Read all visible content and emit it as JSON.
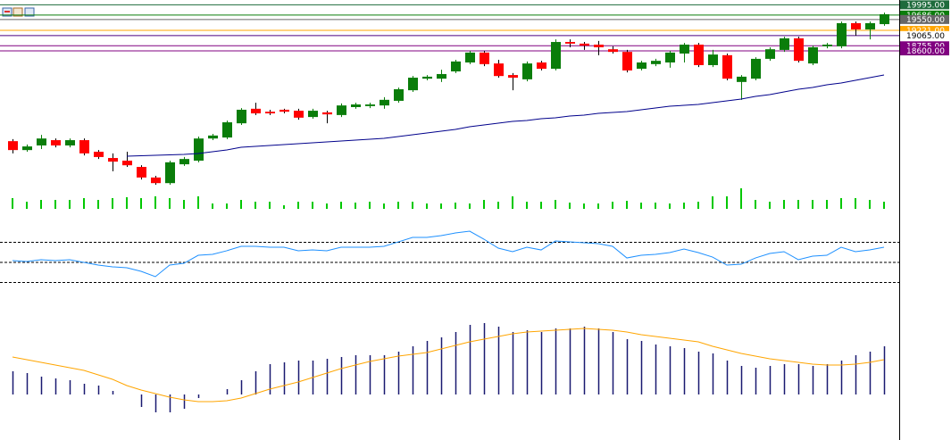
{
  "chart_data": {
    "type": "candlestick",
    "ylim": [
      14470,
      20140
    ],
    "open": [
      15870,
      15600,
      15740,
      15900,
      15740,
      15900,
      15550,
      15360,
      15280,
      15090,
      14770,
      14600,
      15170,
      15280,
      15950,
      15980,
      16410,
      16850,
      16760,
      16820,
      16790,
      16600,
      16740,
      16660,
      16900,
      16930,
      16950,
      17090,
      17410,
      17760,
      17760,
      17980,
      18250,
      18550,
      18220,
      17870,
      17740,
      18250,
      18060,
      18870,
      18820,
      18790,
      18650,
      18570,
      18060,
      18200,
      18250,
      18520,
      18790,
      18170,
      18470,
      17660,
      17760,
      18360,
      18630,
      18980,
      18220,
      18740,
      18740,
      19440,
      19250,
      19410
    ],
    "high": [
      15930,
      15770,
      16060,
      15950,
      15950,
      15950,
      15600,
      15500,
      15550,
      15140,
      14820,
      15280,
      15390,
      16010,
      16090,
      16490,
      16870,
      17030,
      16820,
      16850,
      16850,
      16850,
      16790,
      17010,
      17030,
      17030,
      17200,
      17490,
      17840,
      17870,
      18030,
      18330,
      18600,
      18600,
      18330,
      17930,
      18280,
      18300,
      18950,
      18950,
      18870,
      18900,
      18740,
      18630,
      18300,
      18360,
      18600,
      18840,
      18840,
      18630,
      18520,
      17870,
      18410,
      18710,
      19030,
      19030,
      18760,
      18840,
      19490,
      19490,
      19490,
      19760
    ],
    "low": [
      15500,
      15550,
      15630,
      15680,
      15680,
      15440,
      15330,
      14960,
      15090,
      14710,
      14550,
      14550,
      15120,
      15230,
      15900,
      15930,
      16360,
      16660,
      16660,
      16710,
      16520,
      16550,
      16410,
      16600,
      16850,
      16870,
      16850,
      17030,
      17360,
      17710,
      17660,
      17930,
      18200,
      18140,
      17790,
      17410,
      17680,
      18010,
      18010,
      18710,
      18630,
      18470,
      18520,
      17950,
      18010,
      18140,
      18090,
      18250,
      18110,
      18110,
      17710,
      17120,
      17710,
      18300,
      18570,
      18250,
      18170,
      18680,
      18680,
      19060,
      18950,
      19360
    ],
    "close": [
      15600,
      15710,
      15950,
      15740,
      15900,
      15500,
      15390,
      15250,
      15140,
      14770,
      14600,
      15230,
      15330,
      15950,
      16040,
      16440,
      16820,
      16710,
      16710,
      16760,
      16580,
      16790,
      16680,
      16950,
      16980,
      16980,
      17120,
      17440,
      17790,
      17820,
      17900,
      18280,
      18550,
      18200,
      17840,
      17790,
      18220,
      18060,
      18870,
      18820,
      18760,
      18710,
      18570,
      18010,
      18250,
      18300,
      18550,
      18790,
      18170,
      18490,
      17760,
      17820,
      18360,
      18650,
      18980,
      18300,
      18710,
      18790,
      19440,
      19250,
      19440,
      19710
    ],
    "up_color": "#0a7d0a",
    "down_color": "#ff0000",
    "ma": [
      null,
      null,
      null,
      null,
      null,
      null,
      null,
      null,
      15414,
      15428,
      15441,
      15455,
      15468,
      15495,
      15549,
      15603,
      15684,
      15711,
      15738,
      15765,
      15792,
      15819,
      15846,
      15873,
      15900,
      15927,
      15954,
      16008,
      16062,
      16116,
      16170,
      16224,
      16305,
      16359,
      16413,
      16467,
      16494,
      16548,
      16575,
      16629,
      16656,
      16710,
      16737,
      16764,
      16818,
      16872,
      16926,
      16953,
      16980,
      17034,
      17088,
      17142,
      17223,
      17277,
      17358,
      17439,
      17493,
      17574,
      17628,
      17709,
      17790,
      17871
    ],
    "ma_color": "#00008b",
    "yticks": [
      {
        "value": 19995,
        "label": "19995.00"
      },
      {
        "value": 19686,
        "label": "19686.00"
      },
      {
        "value": 19550,
        "label": "19550.00"
      },
      {
        "value": 19221,
        "label": "19221.00"
      },
      {
        "value": 19065,
        "label": "19065.00"
      },
      {
        "value": 18755,
        "label": "18755.00"
      },
      {
        "value": 18600,
        "label": "18600.00"
      }
    ],
    "ytick_colors": [
      "#1e6b3c",
      "#0a7d0a",
      "#666666",
      "#ffa500",
      "#ffffff",
      "#800080",
      "#800080"
    ],
    "volume": [
      12,
      8,
      10,
      10,
      10,
      12,
      10,
      12,
      13,
      12,
      14,
      12,
      10,
      14,
      6,
      6,
      10,
      8,
      8,
      4,
      8,
      8,
      6,
      8,
      7,
      8,
      6,
      8,
      8,
      6,
      6,
      7,
      6,
      10,
      8,
      14,
      8,
      8,
      10,
      7,
      6,
      6,
      8,
      9,
      7,
      7,
      6,
      7,
      8,
      14,
      14,
      23,
      10,
      8,
      10,
      10,
      10,
      10,
      12,
      12,
      10,
      8
    ],
    "volume_ylim": [
      0,
      30
    ],
    "volume_color": "#00c800",
    "rsi": [
      51.8,
      50.9,
      52.7,
      51.8,
      52.7,
      50,
      47.3,
      45.6,
      44.7,
      41.1,
      35.8,
      47.3,
      49.1,
      57.1,
      58,
      61.6,
      66,
      66,
      65.1,
      65.1,
      61.6,
      62.4,
      61.6,
      65.1,
      65.1,
      65.1,
      66,
      70.4,
      74.9,
      74.9,
      76.7,
      79.3,
      81.1,
      73.1,
      64.2,
      60.7,
      65.1,
      62.4,
      71.3,
      70.4,
      69.6,
      68.7,
      66,
      54.4,
      57.1,
      58,
      59.8,
      63.3,
      59.8,
      55.3,
      47.3,
      48.2,
      54.4,
      58.9,
      60.7,
      52.7,
      56.2,
      57.1,
      65.1,
      60.7,
      62.4,
      65.1
    ],
    "rsi_ylim": [
      0,
      100
    ],
    "rsi_levels": [
      70,
      50,
      30
    ],
    "rsi_color": "#1e90ff",
    "macd": [
      26,
      24,
      20,
      18,
      16,
      12,
      10,
      4,
      0,
      -14,
      -20,
      -20,
      -16,
      -4,
      0,
      6,
      16,
      26,
      34,
      36,
      38,
      38,
      40,
      42,
      44,
      44,
      44,
      48,
      54,
      60,
      64,
      70,
      78,
      80,
      76,
      70,
      72,
      70,
      74,
      74,
      76,
      74,
      70,
      62,
      60,
      56,
      54,
      52,
      48,
      46,
      38,
      32,
      30,
      32,
      34,
      34,
      32,
      34,
      38,
      44,
      48,
      54
    ],
    "signal": [
      42,
      39,
      36,
      33,
      30,
      27,
      22,
      17,
      10,
      5,
      1,
      -3,
      -6,
      -8,
      -8,
      -7,
      -4,
      1,
      6,
      10,
      14,
      19,
      24,
      29,
      33,
      37,
      40,
      43,
      45,
      47,
      51,
      55,
      59,
      62,
      65,
      68,
      70,
      71,
      72,
      73,
      74,
      73,
      72,
      70,
      67,
      65,
      63,
      61,
      59,
      54,
      50,
      46,
      43,
      40,
      38,
      36,
      34,
      33,
      33,
      34,
      36,
      39
    ],
    "macd_ylim": [
      -50,
      100
    ],
    "macd_color": "#191970",
    "signal_color": "#ffa500"
  }
}
